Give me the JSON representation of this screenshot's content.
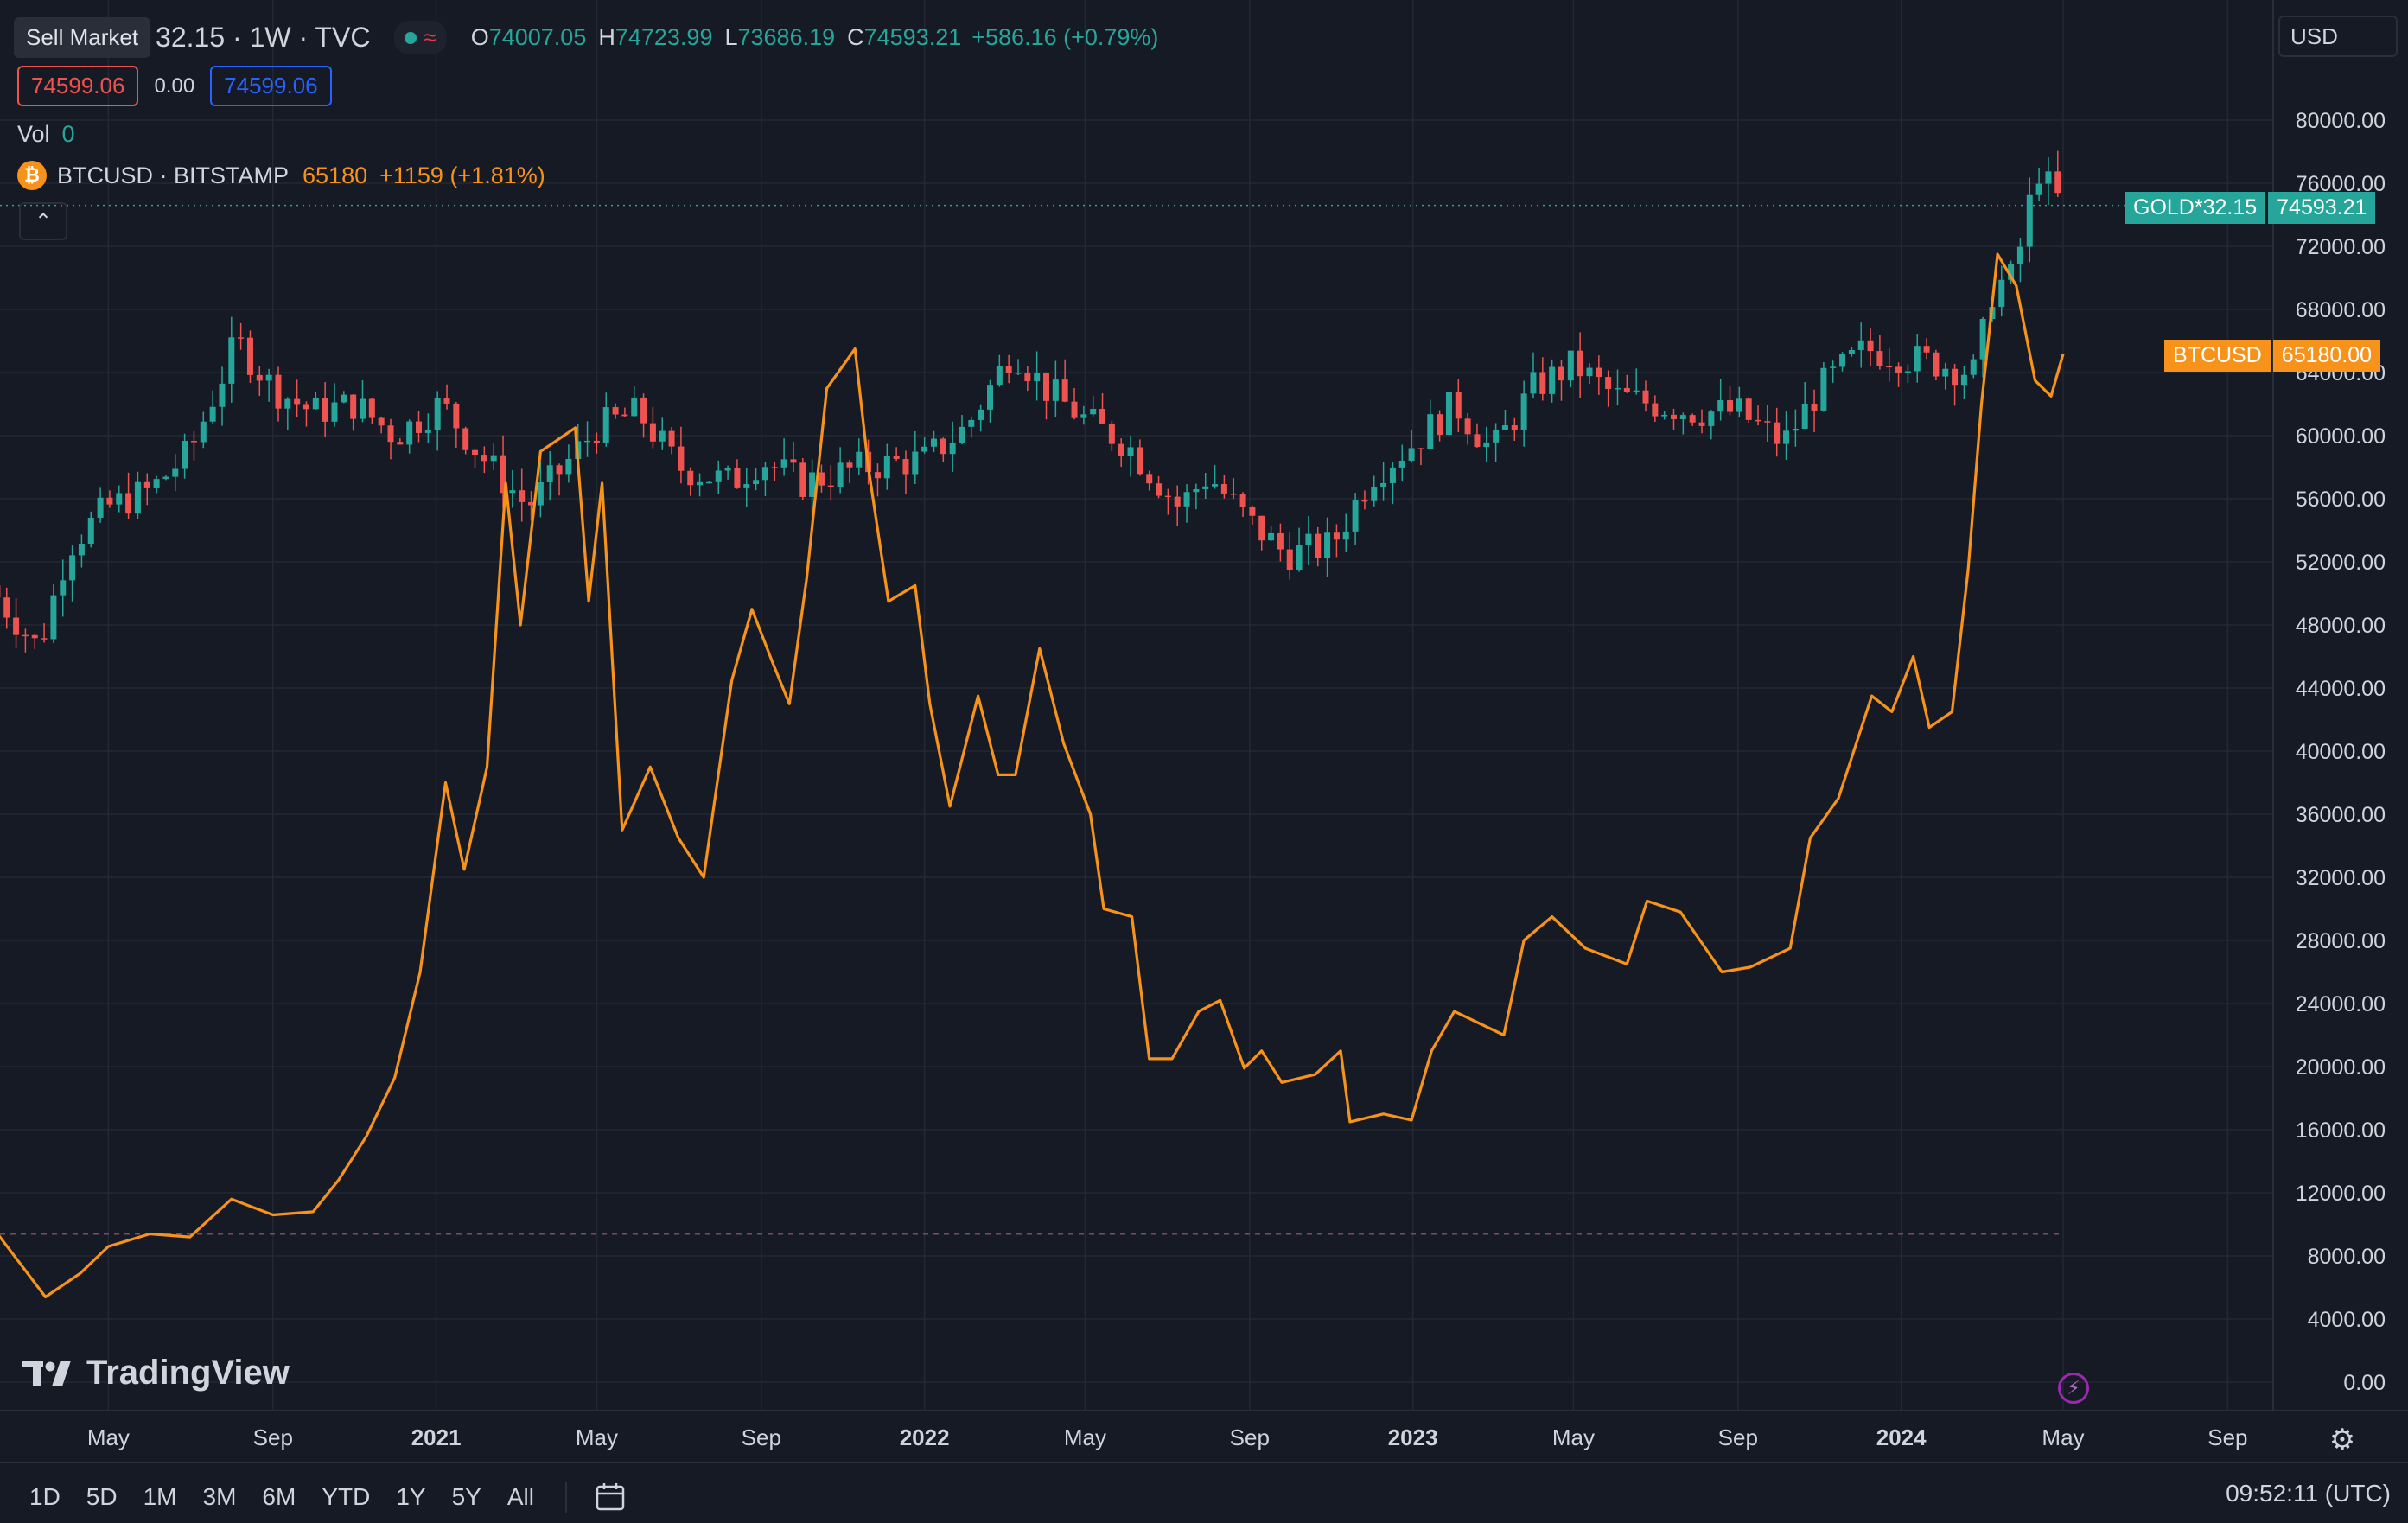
{
  "header": {
    "sell_tooltip": "Sell Market",
    "symbol_tail": "32.15 · 1W · TVC",
    "open_label": "O",
    "open": "74007.05",
    "high_label": "H",
    "high": "74723.99",
    "low_label": "L",
    "low": "73686.19",
    "close_label": "C",
    "close": "74593.21",
    "change": "+586.16 (+0.79%)",
    "sell_price": "74599.06",
    "spread": "0.00",
    "buy_price": "74599.06",
    "vol_label": "Vol",
    "vol_value": "0",
    "compare_symbol": "BTCUSD · BITSTAMP",
    "compare_price": "65180",
    "compare_change": "+1159 (+1.81%)",
    "currency": "USD"
  },
  "badges": {
    "gold_name": "GOLD*32.15",
    "gold_value": "74593.21",
    "btc_name": "BTCUSD",
    "btc_value": "65180.00"
  },
  "footer": {
    "timeframes": [
      "1D",
      "5D",
      "1M",
      "3M",
      "6M",
      "YTD",
      "1Y",
      "5Y",
      "All"
    ],
    "clock": "09:52:11 (UTC)",
    "logo_text": "TradingView"
  },
  "colors": {
    "up": "#26a69a",
    "down": "#ef5350",
    "btc": "#f7931a",
    "background": "#161a25",
    "grid": "#242833"
  },
  "chart_data": {
    "type": "line",
    "title": "",
    "ylim": [
      0,
      82000
    ],
    "yticks": [
      "0.00",
      "4000.00",
      "8000.00",
      "12000.00",
      "16000.00",
      "20000.00",
      "24000.00",
      "28000.00",
      "32000.00",
      "36000.00",
      "40000.00",
      "44000.00",
      "48000.00",
      "52000.00",
      "56000.00",
      "60000.00",
      "64000.00",
      "68000.00",
      "72000.00",
      "76000.00",
      "80000.00"
    ],
    "xticks": [
      {
        "label": "May",
        "date": "2020-05-01",
        "bold": false
      },
      {
        "label": "Sep",
        "date": "2020-09-01",
        "bold": false
      },
      {
        "label": "2021",
        "date": "2021-01-01",
        "bold": true
      },
      {
        "label": "May",
        "date": "2021-05-01",
        "bold": false
      },
      {
        "label": "Sep",
        "date": "2021-09-01",
        "bold": false
      },
      {
        "label": "2022",
        "date": "2022-01-01",
        "bold": true
      },
      {
        "label": "May",
        "date": "2022-05-01",
        "bold": false
      },
      {
        "label": "Sep",
        "date": "2022-09-01",
        "bold": false
      },
      {
        "label": "2023",
        "date": "2023-01-01",
        "bold": true
      },
      {
        "label": "May",
        "date": "2023-05-01",
        "bold": false
      },
      {
        "label": "Sep",
        "date": "2023-09-01",
        "bold": false
      },
      {
        "label": "2024",
        "date": "2024-01-01",
        "bold": true
      },
      {
        "label": "May",
        "date": "2024-05-01",
        "bold": false
      },
      {
        "label": "Sep",
        "date": "2024-09-01",
        "bold": false
      }
    ],
    "series": [
      {
        "name": "GOLD*32.15",
        "kind": "candlestick",
        "points": [
          {
            "x": "2020-02-01",
            "y": 50500
          },
          {
            "x": "2020-03-10",
            "y": 46500
          },
          {
            "x": "2020-04-01",
            "y": 53000
          },
          {
            "x": "2020-05-01",
            "y": 55500
          },
          {
            "x": "2020-06-01",
            "y": 56500
          },
          {
            "x": "2020-07-01",
            "y": 59000
          },
          {
            "x": "2020-08-05",
            "y": 66000
          },
          {
            "x": "2020-09-01",
            "y": 63000
          },
          {
            "x": "2020-10-01",
            "y": 61500
          },
          {
            "x": "2020-11-01",
            "y": 62000
          },
          {
            "x": "2020-12-01",
            "y": 60000
          },
          {
            "x": "2021-01-05",
            "y": 62000
          },
          {
            "x": "2021-02-01",
            "y": 59000
          },
          {
            "x": "2021-03-10",
            "y": 55500
          },
          {
            "x": "2021-04-01",
            "y": 57500
          },
          {
            "x": "2021-05-01",
            "y": 60500
          },
          {
            "x": "2021-06-01",
            "y": 61500
          },
          {
            "x": "2021-07-01",
            "y": 58000
          },
          {
            "x": "2021-08-10",
            "y": 57000
          },
          {
            "x": "2021-09-01",
            "y": 58500
          },
          {
            "x": "2021-10-01",
            "y": 57000
          },
          {
            "x": "2021-11-15",
            "y": 58000
          },
          {
            "x": "2022-01-01",
            "y": 58500
          },
          {
            "x": "2022-02-01",
            "y": 60500
          },
          {
            "x": "2022-03-08",
            "y": 65500
          },
          {
            "x": "2022-04-01",
            "y": 63000
          },
          {
            "x": "2022-05-01",
            "y": 61000
          },
          {
            "x": "2022-06-01",
            "y": 59500
          },
          {
            "x": "2022-07-10",
            "y": 55500
          },
          {
            "x": "2022-08-01",
            "y": 57500
          },
          {
            "x": "2022-09-01",
            "y": 54500
          },
          {
            "x": "2022-09-28",
            "y": 52500
          },
          {
            "x": "2022-11-01",
            "y": 53000
          },
          {
            "x": "2022-12-01",
            "y": 57500
          },
          {
            "x": "2023-01-01",
            "y": 59500
          },
          {
            "x": "2023-02-01",
            "y": 62000
          },
          {
            "x": "2023-03-01",
            "y": 59000
          },
          {
            "x": "2023-04-01",
            "y": 63000
          },
          {
            "x": "2023-05-01",
            "y": 64500
          },
          {
            "x": "2023-06-01",
            "y": 62500
          },
          {
            "x": "2023-07-01",
            "y": 62000
          },
          {
            "x": "2023-08-01",
            "y": 61500
          },
          {
            "x": "2023-09-01",
            "y": 61500
          },
          {
            "x": "2023-10-05",
            "y": 59500
          },
          {
            "x": "2023-11-01",
            "y": 63000
          },
          {
            "x": "2023-12-05",
            "y": 65500
          },
          {
            "x": "2024-01-01",
            "y": 65000
          },
          {
            "x": "2024-02-01",
            "y": 64500
          },
          {
            "x": "2024-02-25",
            "y": 64000
          },
          {
            "x": "2024-03-10",
            "y": 69500
          },
          {
            "x": "2024-03-25",
            "y": 70000
          },
          {
            "x": "2024-04-12",
            "y": 77000
          },
          {
            "x": "2024-04-22",
            "y": 75500
          },
          {
            "x": "2024-05-01",
            "y": 74593
          }
        ]
      },
      {
        "name": "BTCUSD",
        "kind": "line",
        "points": [
          {
            "x": "2020-02-01",
            "y": 10200
          },
          {
            "x": "2020-03-15",
            "y": 5400
          },
          {
            "x": "2020-04-10",
            "y": 6900
          },
          {
            "x": "2020-05-01",
            "y": 8600
          },
          {
            "x": "2020-06-01",
            "y": 9400
          },
          {
            "x": "2020-07-01",
            "y": 9200
          },
          {
            "x": "2020-08-01",
            "y": 11600
          },
          {
            "x": "2020-09-01",
            "y": 10600
          },
          {
            "x": "2020-10-01",
            "y": 10800
          },
          {
            "x": "2020-10-20",
            "y": 12800
          },
          {
            "x": "2020-11-10",
            "y": 15600
          },
          {
            "x": "2020-12-01",
            "y": 19300
          },
          {
            "x": "2020-12-20",
            "y": 26000
          },
          {
            "x": "2021-01-08",
            "y": 38000
          },
          {
            "x": "2021-01-22",
            "y": 32500
          },
          {
            "x": "2021-02-08",
            "y": 39000
          },
          {
            "x": "2021-02-22",
            "y": 57000
          },
          {
            "x": "2021-03-05",
            "y": 48000
          },
          {
            "x": "2021-03-20",
            "y": 59000
          },
          {
            "x": "2021-04-15",
            "y": 60500
          },
          {
            "x": "2021-04-25",
            "y": 49500
          },
          {
            "x": "2021-05-05",
            "y": 57000
          },
          {
            "x": "2021-05-20",
            "y": 35000
          },
          {
            "x": "2021-06-10",
            "y": 39000
          },
          {
            "x": "2021-07-01",
            "y": 34500
          },
          {
            "x": "2021-07-20",
            "y": 32000
          },
          {
            "x": "2021-08-10",
            "y": 44500
          },
          {
            "x": "2021-08-25",
            "y": 49000
          },
          {
            "x": "2021-09-10",
            "y": 45500
          },
          {
            "x": "2021-09-22",
            "y": 43000
          },
          {
            "x": "2021-10-05",
            "y": 51000
          },
          {
            "x": "2021-10-20",
            "y": 63000
          },
          {
            "x": "2021-11-10",
            "y": 65500
          },
          {
            "x": "2021-11-20",
            "y": 58000
          },
          {
            "x": "2021-12-05",
            "y": 49500
          },
          {
            "x": "2021-12-25",
            "y": 50500
          },
          {
            "x": "2022-01-05",
            "y": 43000
          },
          {
            "x": "2022-01-20",
            "y": 36500
          },
          {
            "x": "2022-02-10",
            "y": 43500
          },
          {
            "x": "2022-02-25",
            "y": 38500
          },
          {
            "x": "2022-03-10",
            "y": 38500
          },
          {
            "x": "2022-03-28",
            "y": 46500
          },
          {
            "x": "2022-04-15",
            "y": 40500
          },
          {
            "x": "2022-05-05",
            "y": 36000
          },
          {
            "x": "2022-05-15",
            "y": 30000
          },
          {
            "x": "2022-06-05",
            "y": 29500
          },
          {
            "x": "2022-06-18",
            "y": 20500
          },
          {
            "x": "2022-07-05",
            "y": 20500
          },
          {
            "x": "2022-07-25",
            "y": 23500
          },
          {
            "x": "2022-08-10",
            "y": 24200
          },
          {
            "x": "2022-08-28",
            "y": 19900
          },
          {
            "x": "2022-09-10",
            "y": 21000
          },
          {
            "x": "2022-09-25",
            "y": 19000
          },
          {
            "x": "2022-10-20",
            "y": 19500
          },
          {
            "x": "2022-11-08",
            "y": 21000
          },
          {
            "x": "2022-11-15",
            "y": 16500
          },
          {
            "x": "2022-12-10",
            "y": 17000
          },
          {
            "x": "2022-12-31",
            "y": 16600
          },
          {
            "x": "2023-01-15",
            "y": 21000
          },
          {
            "x": "2023-02-01",
            "y": 23500
          },
          {
            "x": "2023-03-10",
            "y": 22000
          },
          {
            "x": "2023-03-25",
            "y": 28000
          },
          {
            "x": "2023-04-15",
            "y": 29500
          },
          {
            "x": "2023-05-10",
            "y": 27500
          },
          {
            "x": "2023-06-10",
            "y": 26500
          },
          {
            "x": "2023-06-25",
            "y": 30500
          },
          {
            "x": "2023-07-20",
            "y": 29800
          },
          {
            "x": "2023-08-20",
            "y": 26000
          },
          {
            "x": "2023-09-10",
            "y": 26300
          },
          {
            "x": "2023-10-10",
            "y": 27500
          },
          {
            "x": "2023-10-25",
            "y": 34500
          },
          {
            "x": "2023-11-15",
            "y": 37000
          },
          {
            "x": "2023-12-10",
            "y": 43500
          },
          {
            "x": "2023-12-25",
            "y": 42500
          },
          {
            "x": "2024-01-10",
            "y": 46000
          },
          {
            "x": "2024-01-22",
            "y": 41500
          },
          {
            "x": "2024-02-08",
            "y": 42500
          },
          {
            "x": "2024-02-20",
            "y": 51500
          },
          {
            "x": "2024-03-01",
            "y": 62000
          },
          {
            "x": "2024-03-13",
            "y": 71500
          },
          {
            "x": "2024-03-27",
            "y": 69500
          },
          {
            "x": "2024-04-10",
            "y": 63500
          },
          {
            "x": "2024-04-22",
            "y": 62500
          },
          {
            "x": "2024-05-01",
            "y": 65180
          }
        ]
      }
    ]
  }
}
